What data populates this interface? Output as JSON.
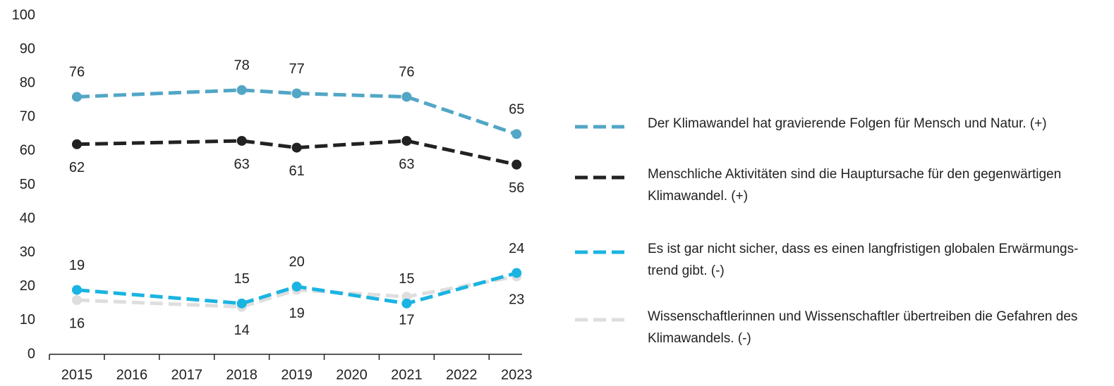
{
  "chart_data": {
    "type": "line",
    "x": [
      2015,
      2018,
      2019,
      2021,
      2023
    ],
    "xlim": [
      2014.5,
      2023.1
    ],
    "xticks": [
      2015,
      2016,
      2017,
      2018,
      2019,
      2020,
      2021,
      2022,
      2023
    ],
    "ylim": [
      0,
      100
    ],
    "yticks": [
      0,
      10,
      20,
      30,
      40,
      50,
      60,
      70,
      80,
      90,
      100
    ],
    "grid": false,
    "legend": "right",
    "series": [
      {
        "name": "Der Klimawandel hat gravierende Folgen für Mensch und Natur. (+)",
        "color": "#52a6c6",
        "values": [
          76,
          78,
          77,
          76,
          65
        ]
      },
      {
        "name": "Menschliche Aktivitäten sind die Hauptursache für den gegenwärtigen Klimawandel. (+)",
        "color": "#222222",
        "values": [
          62,
          63,
          61,
          63,
          56
        ]
      },
      {
        "name": "Es ist gar nicht sicher, dass es einen langfristigen globalen Erwärmungs­trend gibt. (-)",
        "color": "#1ab4e2",
        "values": [
          19,
          15,
          20,
          15,
          24
        ]
      },
      {
        "name": "Wissenschaftlerinnen und Wissenschaftler übertreiben die Gefahren des Klimawandels. (-)",
        "color": "#dedede",
        "values": [
          16,
          14,
          19,
          17,
          23
        ]
      }
    ]
  }
}
